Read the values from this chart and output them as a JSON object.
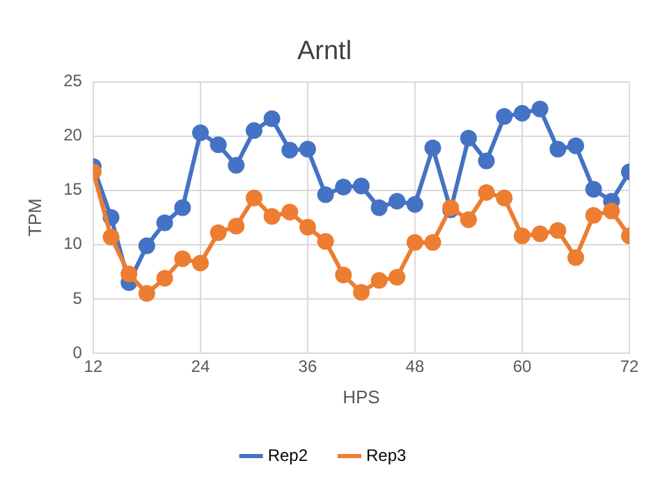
{
  "chart_data": {
    "type": "line",
    "title": "Arntl",
    "xlabel": "HPS",
    "ylabel": "TPM",
    "x": [
      12,
      14,
      16,
      18,
      20,
      22,
      24,
      26,
      28,
      30,
      32,
      34,
      36,
      38,
      40,
      42,
      44,
      46,
      48,
      50,
      52,
      54,
      56,
      58,
      60,
      62,
      64,
      66,
      68,
      70,
      72
    ],
    "series": [
      {
        "name": "Rep2",
        "color": "#4472c4",
        "values": [
          17.2,
          12.5,
          6.5,
          9.9,
          12.0,
          13.4,
          20.3,
          19.2,
          17.3,
          20.5,
          21.6,
          18.7,
          18.8,
          14.6,
          15.3,
          15.4,
          13.4,
          14.0,
          13.7,
          18.9,
          13.2,
          19.8,
          17.7,
          21.8,
          22.1,
          22.5,
          18.8,
          19.1,
          15.1,
          14.0,
          16.7
        ]
      },
      {
        "name": "Rep3",
        "color": "#ed7d31",
        "values": [
          16.7,
          10.7,
          7.3,
          5.5,
          6.9,
          8.7,
          8.3,
          11.1,
          11.7,
          14.3,
          12.6,
          13.0,
          11.6,
          10.3,
          7.2,
          5.6,
          6.7,
          7.0,
          10.2,
          10.2,
          13.4,
          12.3,
          14.8,
          14.3,
          10.8,
          11.0,
          11.3,
          8.8,
          12.7,
          13.1,
          10.8
        ]
      }
    ],
    "xlim": [
      12,
      72
    ],
    "xticks": [
      12,
      24,
      36,
      48,
      60,
      72
    ],
    "ylim": [
      0,
      25
    ],
    "yticks": [
      0,
      5,
      10,
      15,
      20,
      25
    ],
    "grid": true,
    "legend": "bottom",
    "marker": "circle",
    "line_style": "solid"
  }
}
